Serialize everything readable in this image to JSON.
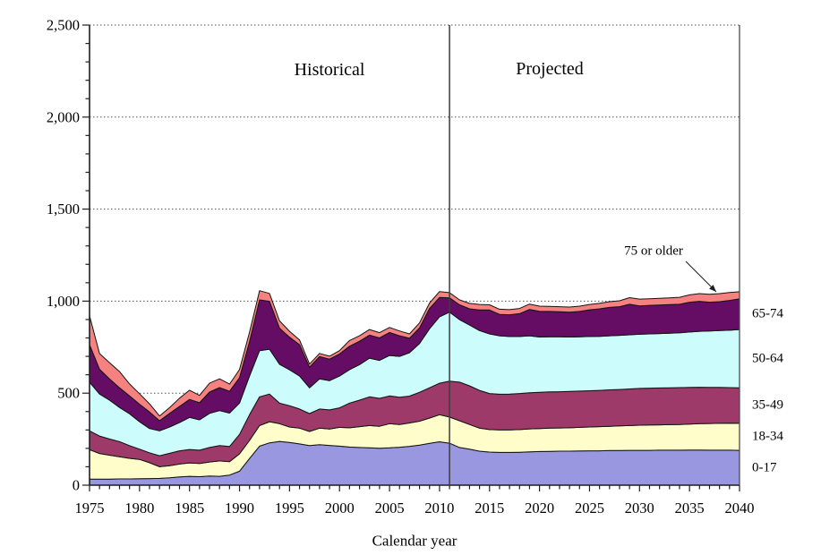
{
  "chart_data": {
    "type": "area",
    "stacked": true,
    "title": "",
    "xlabel": "Calendar year",
    "ylabel": "",
    "xlim": [
      1975,
      2040
    ],
    "ylim": [
      0,
      2500
    ],
    "x_major_step": 5,
    "x_minor_step": 1,
    "y_major_step": 500,
    "y_minor_step": 100,
    "grid": "horizontal-dotted",
    "legend_position": "right-edge-of-bands",
    "x_tick_labels": [
      "1975",
      "1980",
      "1985",
      "1990",
      "1995",
      "2000",
      "2005",
      "2010",
      "2015",
      "2020",
      "2025",
      "2030",
      "2035",
      "2040"
    ],
    "y_tick_labels": [
      "0",
      "500",
      "1,000",
      "1,500",
      "2,000",
      "2,500"
    ],
    "divider_year": 2011,
    "annotations": {
      "historical": "Historical",
      "projected": "Projected",
      "oldest_group": "75 or older"
    },
    "series": [
      {
        "name": "0-17",
        "color": "#9897e0",
        "values": [
          33,
          33,
          33,
          34,
          34,
          35,
          36,
          37,
          40,
          45,
          48,
          46,
          50,
          48,
          55,
          76,
          145,
          212,
          230,
          238,
          232,
          224,
          215,
          220,
          216,
          212,
          207,
          205,
          203,
          201,
          203,
          206,
          211,
          218,
          227,
          236,
          228,
          205,
          196,
          185,
          180,
          178,
          178,
          179,
          181,
          183,
          184,
          185,
          185,
          186,
          187,
          187,
          188,
          188,
          189,
          189,
          189,
          190,
          190,
          190,
          191,
          191,
          190,
          190,
          190,
          189
        ]
      },
      {
        "name": "18-34",
        "color": "#fffdc9",
        "values": [
          160,
          139,
          130,
          120,
          112,
          105,
          86,
          63,
          66,
          70,
          73,
          72,
          76,
          84,
          73,
          94,
          98,
          112,
          115,
          96,
          84,
          86,
          77,
          90,
          89,
          102,
          105,
          113,
          121,
          119,
          131,
          124,
          127,
          130,
          138,
          147,
          142,
          145,
          134,
          125,
          122,
          122,
          122,
          123,
          125,
          125,
          126,
          126,
          127,
          128,
          129,
          131,
          132,
          134,
          135,
          137,
          138,
          138,
          139,
          140,
          141,
          143,
          145,
          146,
          147,
          147
        ]
      },
      {
        "name": "35-49",
        "color": "#9e3a69",
        "values": [
          102,
          95,
          88,
          83,
          69,
          56,
          54,
          60,
          67,
          72,
          73,
          72,
          79,
          83,
          82,
          106,
          140,
          156,
          150,
          112,
          116,
          104,
          97,
          104,
          104,
          106,
          134,
          144,
          156,
          152,
          151,
          148,
          146,
          157,
          164,
          171,
          195,
          210,
          210,
          205,
          196,
          194,
          195,
          196,
          196,
          197,
          197,
          197,
          197,
          197,
          197,
          197,
          198,
          198,
          199,
          200,
          200,
          200,
          200,
          200,
          199,
          198,
          196,
          195,
          193,
          193
        ]
      },
      {
        "name": "50-64",
        "color": "#cdfcfd",
        "values": [
          265,
          228,
          211,
          185,
          173,
          149,
          132,
          135,
          143,
          153,
          174,
          165,
          185,
          190,
          182,
          170,
          210,
          251,
          244,
          211,
          195,
          179,
          140,
          164,
          159,
          173,
          182,
          193,
          210,
          206,
          220,
          222,
          236,
          265,
          321,
          361,
          375,
          340,
          330,
          325,
          324,
          318,
          313,
          310,
          310,
          300,
          299,
          298,
          296,
          295,
          295,
          294,
          294,
          294,
          294,
          294,
          295,
          296,
          297,
          298,
          301,
          304,
          307,
          309,
          312,
          317
        ]
      },
      {
        "name": "65-74",
        "color": "#650c65",
        "values": [
          203,
          135,
          116,
          107,
          97,
          95,
          90,
          55,
          74,
          88,
          98,
          93,
          116,
          125,
          118,
          138,
          187,
          276,
          260,
          196,
          177,
          170,
          112,
          121,
          117,
          120,
          127,
          127,
          125,
          122,
          125,
          112,
          78,
          85,
          110,
          105,
          78,
          80,
          88,
          112,
          130,
          116,
          118,
          124,
          143,
          140,
          138,
          136,
          135,
          138,
          145,
          149,
          154,
          156,
          166,
          154,
          155,
          155,
          155,
          155,
          162,
          163,
          156,
          157,
          162,
          166
        ]
      },
      {
        "name": "75 or older",
        "color": "#f58280",
        "values": [
          157,
          85,
          88,
          88,
          65,
          57,
          44,
          26,
          31,
          45,
          50,
          40,
          48,
          48,
          39,
          44,
          51,
          50,
          43,
          40,
          32,
          26,
          17,
          17,
          16,
          18,
          31,
          30,
          31,
          29,
          27,
          26,
          24,
          27,
          30,
          32,
          28,
          27,
          30,
          30,
          28,
          28,
          28,
          28,
          29,
          28,
          28,
          28,
          28,
          29,
          29,
          30,
          31,
          32,
          36,
          37,
          36,
          36,
          37,
          38,
          40,
          42,
          43,
          44,
          43,
          39
        ]
      }
    ],
    "right_edge_labels": [
      "65-74",
      "50-64",
      "35-49",
      "18-34",
      "0-17"
    ]
  }
}
